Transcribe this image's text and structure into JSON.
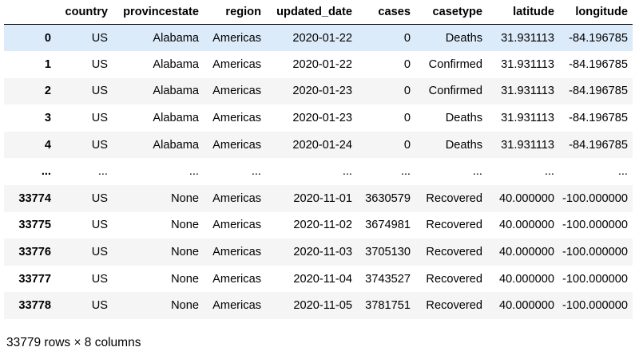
{
  "table": {
    "columns": [
      "",
      "country",
      "provincestate",
      "region",
      "updated_date",
      "cases",
      "casetype",
      "latitude",
      "longitude"
    ],
    "rows": [
      {
        "index": "0",
        "cells": [
          "US",
          "Alabama",
          "Americas",
          "2020-01-22",
          "0",
          "Deaths",
          "31.931113",
          "-84.196785"
        ]
      },
      {
        "index": "1",
        "cells": [
          "US",
          "Alabama",
          "Americas",
          "2020-01-22",
          "0",
          "Confirmed",
          "31.931113",
          "-84.196785"
        ]
      },
      {
        "index": "2",
        "cells": [
          "US",
          "Alabama",
          "Americas",
          "2020-01-23",
          "0",
          "Confirmed",
          "31.931113",
          "-84.196785"
        ]
      },
      {
        "index": "3",
        "cells": [
          "US",
          "Alabama",
          "Americas",
          "2020-01-23",
          "0",
          "Deaths",
          "31.931113",
          "-84.196785"
        ]
      },
      {
        "index": "4",
        "cells": [
          "US",
          "Alabama",
          "Americas",
          "2020-01-24",
          "0",
          "Deaths",
          "31.931113",
          "-84.196785"
        ]
      },
      {
        "index": "...",
        "cells": [
          "...",
          "...",
          "...",
          "...",
          "...",
          "...",
          "...",
          "..."
        ]
      },
      {
        "index": "33774",
        "cells": [
          "US",
          "None",
          "Americas",
          "2020-11-01",
          "3630579",
          "Recovered",
          "40.000000",
          "-100.000000"
        ]
      },
      {
        "index": "33775",
        "cells": [
          "US",
          "None",
          "Americas",
          "2020-11-02",
          "3674981",
          "Recovered",
          "40.000000",
          "-100.000000"
        ]
      },
      {
        "index": "33776",
        "cells": [
          "US",
          "None",
          "Americas",
          "2020-11-03",
          "3705130",
          "Recovered",
          "40.000000",
          "-100.000000"
        ]
      },
      {
        "index": "33777",
        "cells": [
          "US",
          "None",
          "Americas",
          "2020-11-04",
          "3743527",
          "Recovered",
          "40.000000",
          "-100.000000"
        ]
      },
      {
        "index": "33778",
        "cells": [
          "US",
          "None",
          "Americas",
          "2020-11-05",
          "3781751",
          "Recovered",
          "40.000000",
          "-100.000000"
        ]
      }
    ],
    "selected_row": 0
  },
  "footer": {
    "shape": "33779 rows × 8 columns"
  },
  "colors": {
    "selected_row_bg": "#dcebfa",
    "striped_row_bg": "#f5f5f5"
  }
}
